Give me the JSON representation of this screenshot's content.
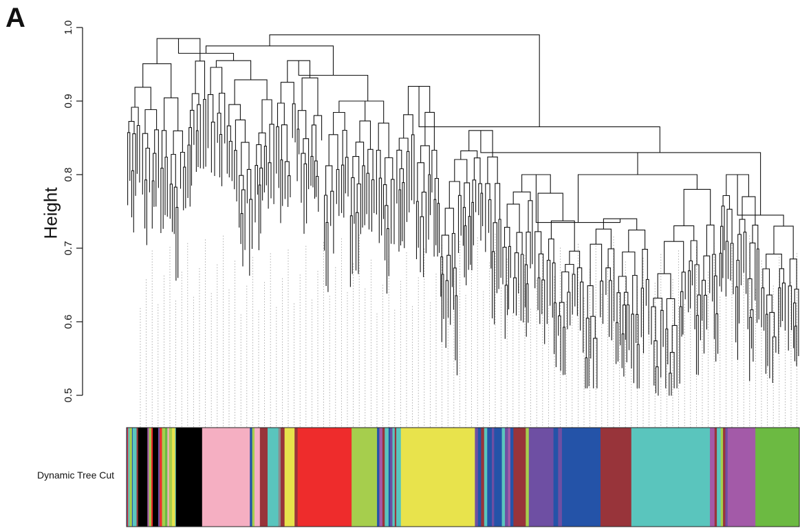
{
  "figure": {
    "panel_label": "A",
    "y_axis_title": "Height",
    "color_bar_label": "Dynamic Tree Cut"
  },
  "chart_data": {
    "type": "dendrogram",
    "ylabel": "Height",
    "ylim": [
      0.5,
      1.0
    ],
    "y_ticks": [
      "0.5",
      "0.6",
      "0.7",
      "0.8",
      "0.9",
      "1.0"
    ],
    "grid": false,
    "guide_lines": "dotted vertical lines connecting leaves to the color bar",
    "top_merges": [
      {
        "height": 0.99,
        "description": "root merge spanning the whole tree"
      },
      {
        "height": 0.965,
        "description": "left block merge"
      },
      {
        "height": 0.935,
        "description": "central (red / lightgreen) block merge"
      },
      {
        "height": 0.865,
        "description": "right half merge"
      },
      {
        "height": 0.83,
        "description": "turquoise / green block merge"
      },
      {
        "height": 0.735,
        "description": "turquoise block join"
      }
    ],
    "module_colors": [
      {
        "module": "black",
        "color": "#000000"
      },
      {
        "module": "pink",
        "color": "#F5AFC2"
      },
      {
        "module": "red",
        "color": "#EE2C2C"
      },
      {
        "module": "greenyellow",
        "color": "#A6CE4D"
      },
      {
        "module": "yellow",
        "color": "#E8E34C"
      },
      {
        "module": "brown",
        "color": "#98343A"
      },
      {
        "module": "purple",
        "color": "#6E4FA3"
      },
      {
        "module": "blue",
        "color": "#2453A8"
      },
      {
        "module": "turquoise",
        "color": "#5AC5BD"
      },
      {
        "module": "magenta",
        "color": "#A35AA8"
      },
      {
        "module": "green",
        "color": "#6CBA42"
      },
      {
        "module": "grey",
        "color": "#8C8C8C"
      }
    ],
    "color_bar_segments": [
      {
        "color": "#6E4FA3",
        "weight": 1
      },
      {
        "color": "#EE2C2C",
        "weight": 1
      },
      {
        "color": "#5AC5BD",
        "weight": 2
      },
      {
        "color": "#A6CE4D",
        "weight": 3
      },
      {
        "color": "#2453A8",
        "weight": 1
      },
      {
        "color": "#5AC5BD",
        "weight": 5
      },
      {
        "color": "#98343A",
        "weight": 2
      },
      {
        "color": "#000000",
        "weight": 12
      },
      {
        "color": "#A35AA8",
        "weight": 2
      },
      {
        "color": "#A6CE4D",
        "weight": 3
      },
      {
        "color": "#EE2C2C",
        "weight": 2
      },
      {
        "color": "#000000",
        "weight": 7
      },
      {
        "color": "#6E4FA3",
        "weight": 2
      },
      {
        "color": "#EE2C2C",
        "weight": 3
      },
      {
        "color": "#A6CE4D",
        "weight": 4
      },
      {
        "color": "#6CBA42",
        "weight": 3
      },
      {
        "color": "#F5AFC2",
        "weight": 2
      },
      {
        "color": "#A6CE4D",
        "weight": 4
      },
      {
        "color": "#E8E34C",
        "weight": 4
      },
      {
        "color": "#5AC5BD",
        "weight": 1
      },
      {
        "color": "#000000",
        "weight": 34
      },
      {
        "color": "#F5AFC2",
        "weight": 62
      },
      {
        "color": "#2453A8",
        "weight": 3
      },
      {
        "color": "#A6CE4D",
        "weight": 3
      },
      {
        "color": "#F5AFC2",
        "weight": 7
      },
      {
        "color": "#98343A",
        "weight": 10
      },
      {
        "color": "#5AC5BD",
        "weight": 14
      },
      {
        "color": "#8C8C8C",
        "weight": 3
      },
      {
        "color": "#98343A",
        "weight": 5
      },
      {
        "color": "#E8E34C",
        "weight": 13
      },
      {
        "color": "#98343A",
        "weight": 4
      },
      {
        "color": "#EE2C2C",
        "weight": 70
      },
      {
        "color": "#A6CE4D",
        "weight": 33
      },
      {
        "color": "#2453A8",
        "weight": 3
      },
      {
        "color": "#A35AA8",
        "weight": 4
      },
      {
        "color": "#98343A",
        "weight": 3
      },
      {
        "color": "#5AC5BD",
        "weight": 5
      },
      {
        "color": "#2453A8",
        "weight": 2
      },
      {
        "color": "#6E4FA3",
        "weight": 3
      },
      {
        "color": "#5AC5BD",
        "weight": 3
      },
      {
        "color": "#98343A",
        "weight": 2
      },
      {
        "color": "#5AC5BD",
        "weight": 6
      },
      {
        "color": "#E8E34C",
        "weight": 96
      },
      {
        "color": "#6E4FA3",
        "weight": 4
      },
      {
        "color": "#2453A8",
        "weight": 4
      },
      {
        "color": "#98343A",
        "weight": 4
      },
      {
        "color": "#5AC5BD",
        "weight": 4
      },
      {
        "color": "#2453A8",
        "weight": 6
      },
      {
        "color": "#6E4FA3",
        "weight": 3
      },
      {
        "color": "#2453A8",
        "weight": 10
      },
      {
        "color": "#5AC5BD",
        "weight": 4
      },
      {
        "color": "#6E4FA3",
        "weight": 4
      },
      {
        "color": "#A35AA8",
        "weight": 3
      },
      {
        "color": "#2453A8",
        "weight": 4
      },
      {
        "color": "#98343A",
        "weight": 16
      },
      {
        "color": "#A6CE4D",
        "weight": 4
      },
      {
        "color": "#6E4FA3",
        "weight": 32
      },
      {
        "color": "#2453A8",
        "weight": 6
      },
      {
        "color": "#6E4FA3",
        "weight": 5
      },
      {
        "color": "#2453A8",
        "weight": 50
      },
      {
        "color": "#98343A",
        "weight": 40
      },
      {
        "color": "#5AC5BD",
        "weight": 102
      },
      {
        "color": "#A35AA8",
        "weight": 6
      },
      {
        "color": "#98343A",
        "weight": 3
      },
      {
        "color": "#5AC5BD",
        "weight": 5
      },
      {
        "color": "#A6CE4D",
        "weight": 3
      },
      {
        "color": "#98343A",
        "weight": 3
      },
      {
        "color": "#6E4FA3",
        "weight": 3
      },
      {
        "color": "#A35AA8",
        "weight": 36
      },
      {
        "color": "#6CBA42",
        "weight": 57
      }
    ]
  }
}
